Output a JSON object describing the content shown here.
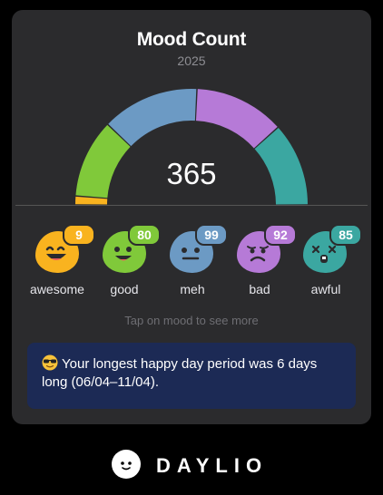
{
  "title": "Mood Count",
  "year": "2025",
  "total": "365",
  "hint": "Tap on mood to see more",
  "info": {
    "emoji": "sunglasses-emoji",
    "text": "Your longest happy day period was 6 days long (06/04–11/04)."
  },
  "brand": {
    "name": "DAYLIO",
    "icon": "daylio-face-icon"
  },
  "colors": {
    "awesome": "#f9b31f",
    "good": "#80c93a",
    "meh": "#6c9ac4",
    "bad": "#b67ad7",
    "awful": "#3ba7a1",
    "card": "#2b2b2d",
    "info_bg": "#1c2a55"
  },
  "moods": [
    {
      "key": "awesome",
      "label": "awesome",
      "count": "9",
      "icon": "awesome-face-icon"
    },
    {
      "key": "good",
      "label": "good",
      "count": "80",
      "icon": "good-face-icon"
    },
    {
      "key": "meh",
      "label": "meh",
      "count": "99",
      "icon": "meh-face-icon"
    },
    {
      "key": "bad",
      "label": "bad",
      "count": "92",
      "icon": "bad-face-icon"
    },
    {
      "key": "awful",
      "label": "awful",
      "count": "85",
      "icon": "awful-face-icon"
    }
  ],
  "chart_data": {
    "type": "pie",
    "categories": [
      "awesome",
      "good",
      "meh",
      "bad",
      "awful"
    ],
    "values": [
      9,
      80,
      99,
      92,
      85
    ],
    "total": 365
  }
}
